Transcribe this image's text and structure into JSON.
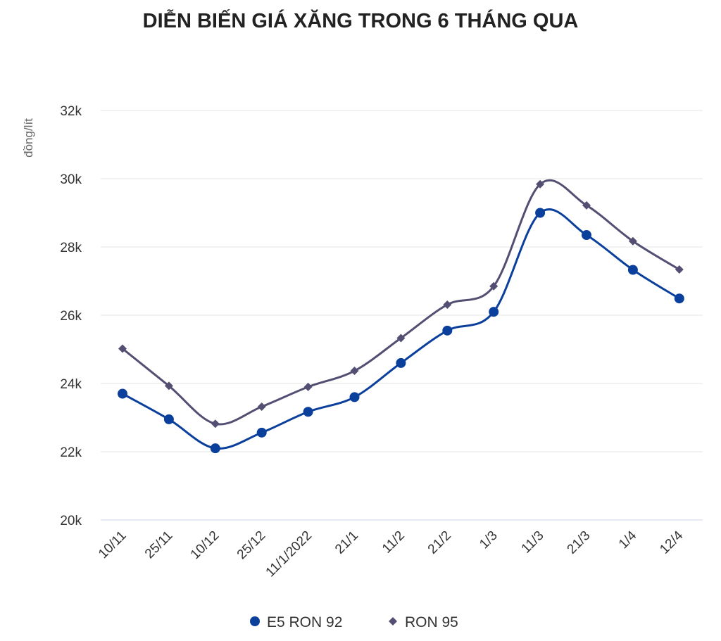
{
  "chart_data": {
    "type": "line",
    "title": "DIỄN BIẾN GIÁ XĂNG TRONG 6 THÁNG QUA",
    "ylabel": "đồng/lít",
    "xlabel": "",
    "categories": [
      "10/11",
      "25/11",
      "10/12",
      "25/12",
      "11/1/2022",
      "21/1",
      "11/2",
      "21/2",
      "1/3",
      "11/3",
      "21/3",
      "1/4",
      "12/4"
    ],
    "ylim": [
      20000,
      32000
    ],
    "yticks": [
      {
        "value": 20000,
        "label": "20k"
      },
      {
        "value": 22000,
        "label": "22k"
      },
      {
        "value": 24000,
        "label": "24k"
      },
      {
        "value": 26000,
        "label": "26k"
      },
      {
        "value": 28000,
        "label": "28k"
      },
      {
        "value": 30000,
        "label": "30k"
      },
      {
        "value": 32000,
        "label": "32k"
      }
    ],
    "grid": true,
    "legend_position": "bottom",
    "series": [
      {
        "name": "E5 RON 92",
        "color": "#0b3f9c",
        "marker": "circle",
        "values": [
          23700,
          22950,
          22100,
          22560,
          23170,
          23600,
          24600,
          25550,
          26100,
          29000,
          28350,
          27330,
          26490
        ]
      },
      {
        "name": "RON 95",
        "color": "#524f72",
        "marker": "diamond",
        "values": [
          25020,
          23930,
          22820,
          23320,
          23900,
          24370,
          25330,
          26310,
          26850,
          29840,
          29220,
          28170,
          27340
        ]
      }
    ]
  }
}
